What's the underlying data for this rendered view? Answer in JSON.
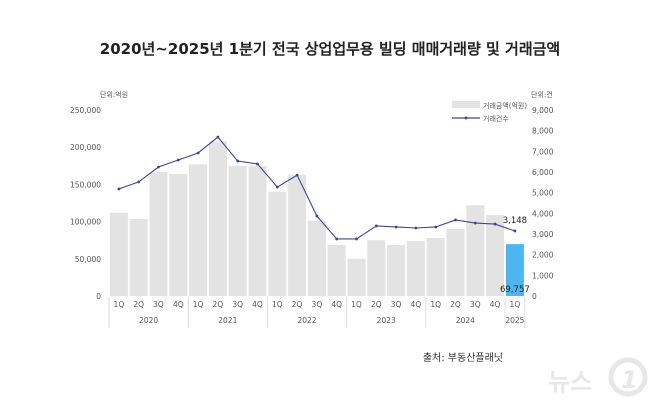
{
  "chart_data": {
    "type": "bar",
    "title": "2020년~2025년 1분기 전국 상업업무용 빌딩 매매거래량 및 거래금액",
    "left_unit": "단위:억원",
    "right_unit": "단위:건",
    "source": "출처: 부동산플래닛",
    "watermark": "뉴스1",
    "categories": [
      "1Q",
      "2Q",
      "3Q",
      "4Q",
      "1Q",
      "2Q",
      "3Q",
      "4Q",
      "1Q",
      "2Q",
      "3Q",
      "4Q",
      "1Q",
      "2Q",
      "3Q",
      "4Q",
      "1Q",
      "2Q",
      "3Q",
      "4Q",
      "1Q"
    ],
    "years": [
      {
        "label": "2020",
        "count": 4
      },
      {
        "label": "2021",
        "count": 4
      },
      {
        "label": "2022",
        "count": 4
      },
      {
        "label": "2023",
        "count": 4
      },
      {
        "label": "2024",
        "count": 4
      },
      {
        "label": "2025",
        "count": 1
      }
    ],
    "series": [
      {
        "name": "거래금액(억원)",
        "type": "bar",
        "axis": "left",
        "color": "#e3e3e3",
        "highlight_color": "#4db6f0",
        "values": [
          112000,
          103500,
          166500,
          164000,
          177000,
          208000,
          175000,
          175000,
          140000,
          163000,
          101000,
          68500,
          50000,
          75000,
          68500,
          74000,
          78000,
          90000,
          122000,
          109000,
          69757
        ]
      },
      {
        "name": "거래건수",
        "type": "line",
        "axis": "right",
        "color": "#3d4a8a",
        "values": [
          5180,
          5520,
          6240,
          6580,
          6920,
          7690,
          6530,
          6390,
          5270,
          5850,
          3870,
          2760,
          2760,
          3390,
          3340,
          3290,
          3340,
          3680,
          3530,
          3480,
          3148
        ]
      }
    ],
    "labels": {
      "last_bar": "69,757",
      "last_point": "3,148"
    },
    "left_axis": {
      "range": [
        0,
        250000
      ],
      "ticks": [
        "0",
        "50,000",
        "100,000",
        "150,000",
        "200,000",
        "250,000"
      ]
    },
    "right_axis": {
      "range": [
        0,
        9000
      ],
      "ticks": [
        "0",
        "1,000",
        "2,000",
        "3,000",
        "4,000",
        "5,000",
        "6,000",
        "7,000",
        "8,000",
        "9,000"
      ]
    },
    "legend_position": "top-right",
    "grid": false
  }
}
